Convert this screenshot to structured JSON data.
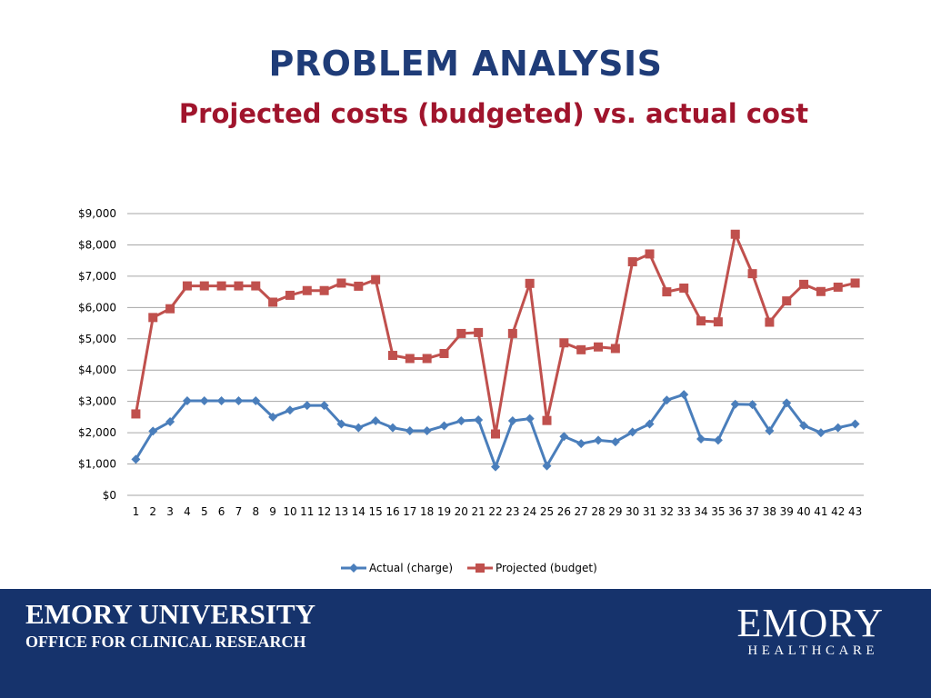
{
  "header": {
    "title": "PROBLEM ANALYSIS",
    "subtitle": "Projected costs (budgeted) vs. actual cost"
  },
  "colors": {
    "title": "#1f3c78",
    "subtitle": "#a0142c",
    "actual": "#4a7ebb",
    "projected": "#c0504d",
    "footer_bg": "#16336c",
    "grid": "#a6a6a6"
  },
  "chart_data": {
    "type": "line",
    "title": "",
    "xlabel": "",
    "ylabel": "",
    "categories": [
      "1",
      "2",
      "3",
      "4",
      "5",
      "6",
      "7",
      "8",
      "9",
      "10",
      "11",
      "12",
      "13",
      "14",
      "15",
      "16",
      "17",
      "18",
      "19",
      "20",
      "21",
      "22",
      "23",
      "24",
      "25",
      "26",
      "27",
      "28",
      "29",
      "30",
      "31",
      "32",
      "33",
      "34",
      "35",
      "36",
      "37",
      "38",
      "39",
      "40",
      "41",
      "42",
      "43"
    ],
    "ylim": [
      0,
      9000
    ],
    "yticks": [
      0,
      1000,
      2000,
      3000,
      4000,
      5000,
      6000,
      7000,
      8000,
      9000
    ],
    "ytick_labels": [
      "$0",
      "$1,000",
      "$2,000",
      "$3,000",
      "$4,000",
      "$5,000",
      "$6,000",
      "$7,000",
      "$8,000",
      "$9,000"
    ],
    "grid": true,
    "legend_position": "bottom",
    "series": [
      {
        "name": "Actual (charge)",
        "marker": "diamond",
        "values": [
          1150,
          2050,
          2350,
          3020,
          3020,
          3020,
          3020,
          3020,
          2500,
          2720,
          2870,
          2870,
          2280,
          2160,
          2380,
          2160,
          2060,
          2060,
          2220,
          2380,
          2410,
          910,
          2380,
          2450,
          940,
          1880,
          1650,
          1760,
          1710,
          2020,
          2280,
          3040,
          3220,
          1800,
          1760,
          2910,
          2900,
          2060,
          2950,
          2230,
          2000,
          2160,
          2280
        ]
      },
      {
        "name": "Projected (budget)",
        "marker": "square",
        "values": [
          2600,
          5680,
          5960,
          6690,
          6690,
          6690,
          6690,
          6690,
          6170,
          6390,
          6540,
          6540,
          6780,
          6680,
          6890,
          4470,
          4370,
          4370,
          4530,
          5170,
          5200,
          1960,
          5170,
          6770,
          2390,
          4870,
          4650,
          4740,
          4690,
          7460,
          7710,
          6500,
          6620,
          5570,
          5540,
          8340,
          7080,
          5530,
          6210,
          6740,
          6510,
          6650,
          6780
        ]
      }
    ]
  },
  "footer": {
    "left_line1": "EMORY UNIVERSITY",
    "left_line2": "OFFICE FOR CLINICAL RESEARCH",
    "right_line1": "EMORY",
    "right_line2": "HEALTHCARE"
  }
}
